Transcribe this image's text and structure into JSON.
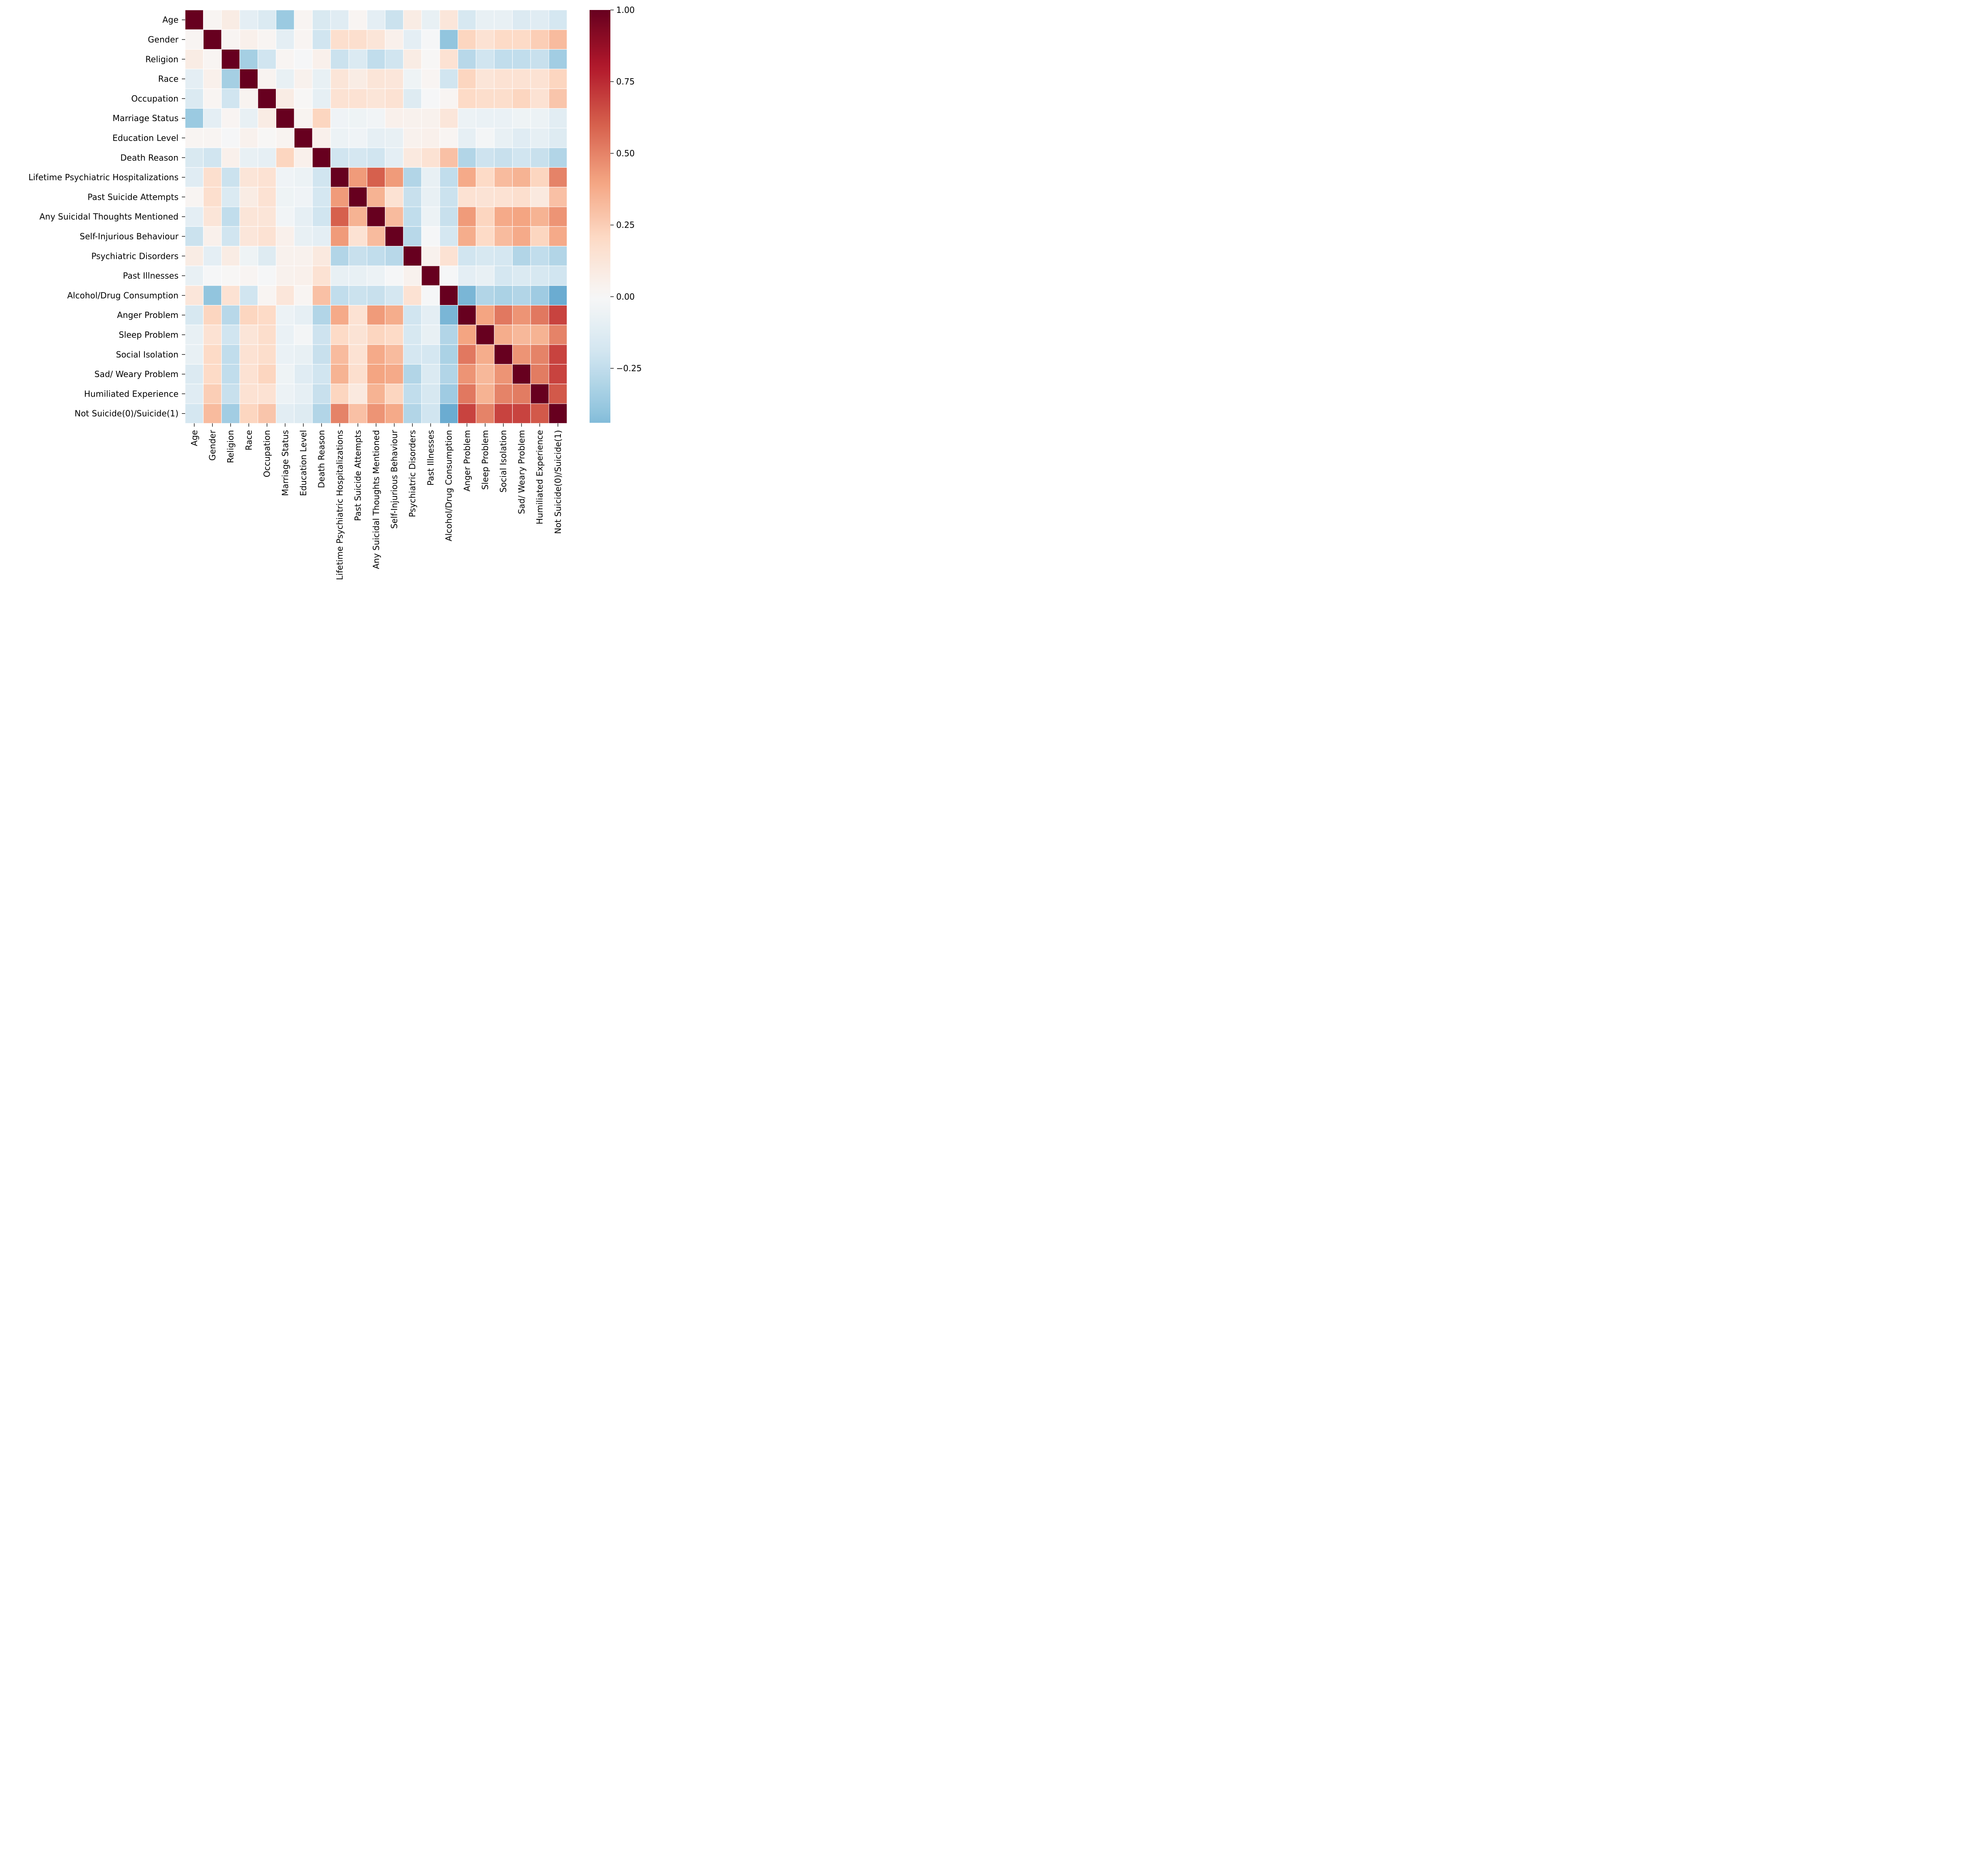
{
  "chart_data": {
    "type": "heatmap",
    "title": "",
    "xlabel": "",
    "ylabel": "",
    "labels": [
      "Age",
      "Gender",
      "Religion",
      "Race",
      "Occupation",
      "Marriage Status",
      "Education Level",
      "Death Reason",
      "Lifetime Psychiatric Hospitalizations",
      "Past Suicide Attempts",
      "Any Suicidal Thoughts Mentioned",
      "Self-Injurious Behaviour",
      "Psychiatric Disorders",
      "Past Illnesses",
      "Alcohol/Drug Consumption",
      "Anger Problem",
      "Sleep Problem",
      "Social Isolation",
      "Sad/ Weary Problem",
      "Humiliated Experience",
      "Not Suicide(0)/Suicide(1)"
    ],
    "matrix": [
      [
        1.0,
        0.02,
        0.08,
        -0.1,
        -0.15,
        -0.37,
        0.02,
        -0.16,
        -0.12,
        0.02,
        -0.1,
        -0.22,
        0.08,
        -0.08,
        0.12,
        -0.17,
        -0.08,
        -0.08,
        -0.14,
        -0.12,
        -0.18
      ],
      [
        0.02,
        1.0,
        0.02,
        0.05,
        0.02,
        -0.1,
        0.02,
        -0.2,
        0.17,
        0.17,
        0.13,
        0.05,
        -0.1,
        -0.01,
        -0.4,
        0.22,
        0.15,
        0.2,
        0.2,
        0.25,
        0.32
      ],
      [
        0.08,
        0.02,
        1.0,
        -0.34,
        -0.2,
        0.02,
        -0.01,
        0.05,
        -0.22,
        -0.15,
        -0.25,
        -0.2,
        0.08,
        0.01,
        0.15,
        -0.28,
        -0.2,
        -0.25,
        -0.25,
        -0.23,
        -0.35
      ],
      [
        -0.1,
        0.05,
        -0.34,
        1.0,
        0.03,
        -0.08,
        0.04,
        -0.08,
        0.13,
        0.08,
        0.13,
        0.12,
        -0.05,
        0.02,
        -0.2,
        0.22,
        0.13,
        0.15,
        0.15,
        0.15,
        0.22
      ],
      [
        -0.15,
        0.02,
        -0.2,
        0.03,
        1.0,
        0.08,
        0.01,
        -0.09,
        0.15,
        0.15,
        0.13,
        0.15,
        -0.13,
        -0.01,
        0.02,
        0.2,
        0.18,
        0.18,
        0.22,
        0.15,
        0.28
      ],
      [
        -0.37,
        -0.1,
        0.02,
        -0.08,
        0.08,
        1.0,
        0.03,
        0.22,
        -0.04,
        -0.05,
        -0.03,
        0.05,
        0.04,
        0.04,
        0.12,
        -0.06,
        -0.07,
        -0.07,
        -0.05,
        -0.06,
        -0.11
      ],
      [
        0.02,
        0.02,
        -0.01,
        0.04,
        0.01,
        0.03,
        1.0,
        0.05,
        -0.06,
        -0.04,
        -0.09,
        -0.08,
        0.04,
        0.05,
        0.02,
        -0.09,
        -0.02,
        -0.08,
        -0.12,
        -0.09,
        -0.13
      ],
      [
        -0.16,
        -0.2,
        0.05,
        -0.08,
        -0.09,
        0.22,
        0.05,
        1.0,
        -0.2,
        -0.18,
        -0.2,
        -0.1,
        0.1,
        0.15,
        0.3,
        -0.3,
        -0.21,
        -0.23,
        -0.2,
        -0.23,
        -0.3
      ],
      [
        -0.12,
        0.17,
        -0.22,
        0.13,
        0.15,
        -0.04,
        -0.06,
        -0.2,
        1.0,
        0.43,
        0.6,
        0.43,
        -0.3,
        -0.08,
        -0.25,
        0.38,
        0.2,
        0.32,
        0.35,
        0.22,
        0.5
      ],
      [
        0.02,
        0.17,
        -0.15,
        0.08,
        0.15,
        -0.05,
        -0.04,
        -0.18,
        0.43,
        1.0,
        0.35,
        0.15,
        -0.23,
        -0.08,
        -0.22,
        0.15,
        0.14,
        0.15,
        0.17,
        0.1,
        0.3
      ],
      [
        -0.1,
        0.13,
        -0.25,
        0.13,
        0.13,
        -0.03,
        -0.09,
        -0.2,
        0.6,
        0.35,
        1.0,
        0.32,
        -0.25,
        -0.06,
        -0.23,
        0.43,
        0.22,
        0.38,
        0.4,
        0.35,
        0.45
      ],
      [
        -0.22,
        0.05,
        -0.2,
        0.12,
        0.15,
        0.05,
        -0.08,
        -0.1,
        0.43,
        0.15,
        0.32,
        1.0,
        -0.28,
        -0.01,
        -0.18,
        0.37,
        0.2,
        0.32,
        0.38,
        0.22,
        0.38
      ],
      [
        0.08,
        -0.1,
        0.08,
        -0.05,
        -0.13,
        0.04,
        0.04,
        0.1,
        -0.3,
        -0.23,
        -0.25,
        -0.28,
        1.0,
        0.04,
        0.15,
        -0.2,
        -0.17,
        -0.18,
        -0.3,
        -0.25,
        -0.3
      ],
      [
        -0.08,
        -0.01,
        0.01,
        0.02,
        -0.01,
        0.04,
        0.05,
        0.15,
        -0.08,
        -0.08,
        -0.06,
        -0.01,
        0.04,
        1.0,
        -0.01,
        -0.1,
        -0.08,
        -0.18,
        -0.15,
        -0.17,
        -0.2
      ],
      [
        0.12,
        -0.4,
        0.15,
        -0.2,
        0.02,
        0.12,
        0.02,
        0.3,
        -0.25,
        -0.22,
        -0.23,
        -0.18,
        0.15,
        -0.01,
        1.0,
        -0.46,
        -0.3,
        -0.32,
        -0.3,
        -0.36,
        -0.5
      ],
      [
        -0.17,
        0.22,
        -0.28,
        0.22,
        0.2,
        -0.06,
        -0.09,
        -0.3,
        0.38,
        0.15,
        0.43,
        0.37,
        -0.2,
        -0.1,
        -0.46,
        1.0,
        0.4,
        0.53,
        0.45,
        0.53,
        0.68
      ],
      [
        -0.08,
        0.15,
        -0.2,
        0.13,
        0.18,
        -0.07,
        -0.02,
        -0.21,
        0.2,
        0.14,
        0.22,
        0.2,
        -0.17,
        -0.08,
        -0.3,
        0.4,
        1.0,
        0.37,
        0.33,
        0.35,
        0.5
      ],
      [
        -0.08,
        0.2,
        -0.25,
        0.15,
        0.18,
        -0.07,
        -0.08,
        -0.23,
        0.32,
        0.15,
        0.38,
        0.32,
        -0.18,
        -0.18,
        -0.32,
        0.53,
        0.37,
        1.0,
        0.45,
        0.5,
        0.68
      ],
      [
        -0.14,
        0.2,
        -0.25,
        0.15,
        0.22,
        -0.05,
        -0.12,
        -0.2,
        0.35,
        0.17,
        0.4,
        0.38,
        -0.3,
        -0.15,
        -0.3,
        0.45,
        0.33,
        0.45,
        1.0,
        0.52,
        0.68
      ],
      [
        -0.12,
        0.25,
        -0.23,
        0.15,
        0.15,
        -0.06,
        -0.09,
        -0.23,
        0.22,
        0.1,
        0.35,
        0.22,
        -0.25,
        -0.17,
        -0.36,
        0.53,
        0.35,
        0.5,
        0.52,
        1.0,
        0.62
      ],
      [
        -0.18,
        0.32,
        -0.35,
        0.22,
        0.28,
        -0.11,
        -0.13,
        -0.3,
        0.5,
        0.3,
        0.45,
        0.38,
        -0.3,
        -0.2,
        -0.5,
        0.68,
        0.5,
        0.68,
        0.68,
        0.62,
        1.0
      ]
    ],
    "vmin": -0.44,
    "vmax": 1.0,
    "colormap": "RdBu_r",
    "colorbar_ticks": [
      1.0,
      0.75,
      0.5,
      0.25,
      0.0,
      -0.25
    ],
    "colorbar_tick_labels": [
      "1.00",
      "0.75",
      "0.50",
      "0.25",
      "0.00",
      "−0.25"
    ],
    "colormap_stops": [
      "#053061",
      "#2166ac",
      "#4393c3",
      "#92c5de",
      "#d1e5f0",
      "#f7f7f7",
      "#fddbc7",
      "#f4a582",
      "#d6604d",
      "#b2182b",
      "#67001f"
    ]
  }
}
